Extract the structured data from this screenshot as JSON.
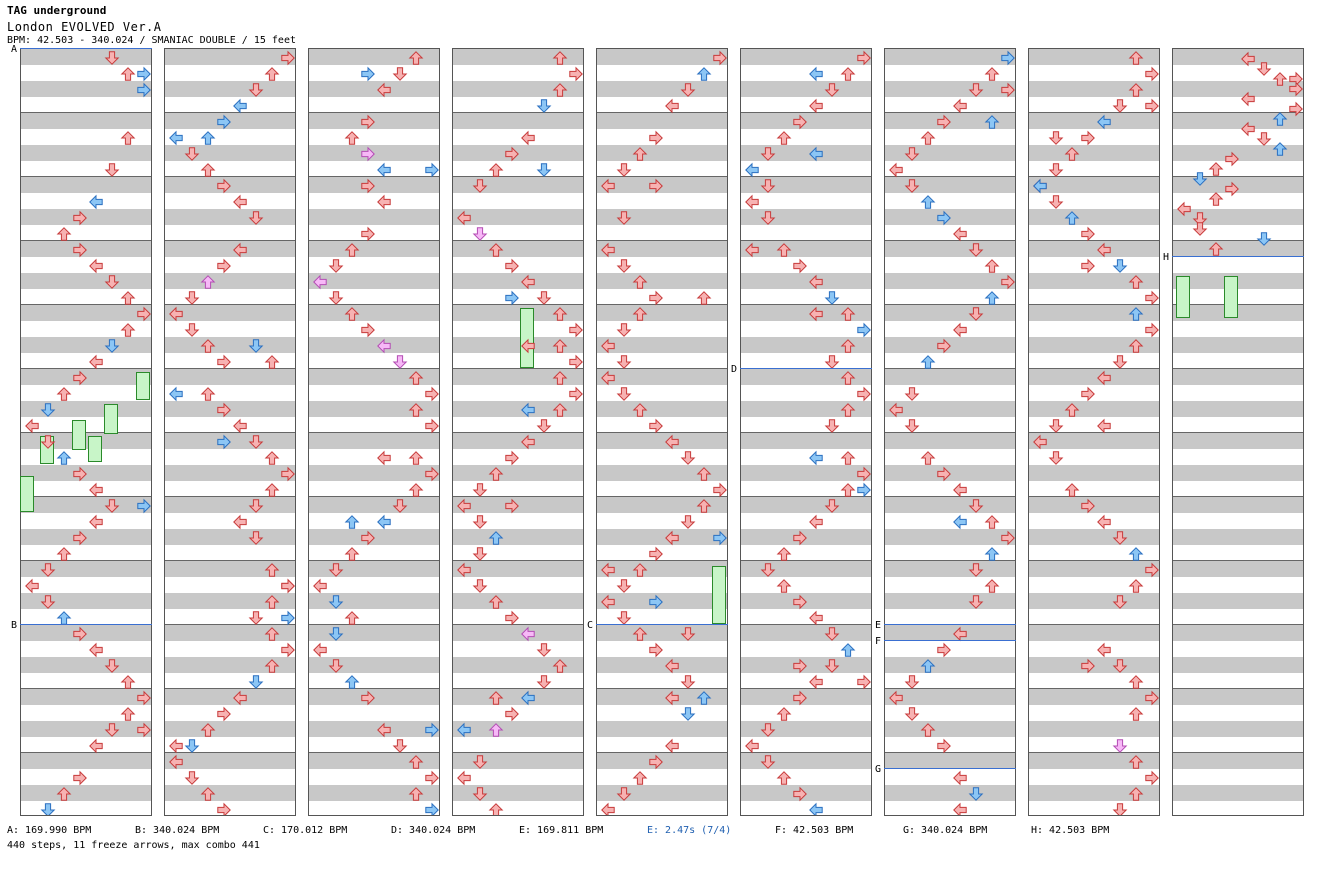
{
  "header": {
    "artist": "TAG underground",
    "title": "London EVOLVED Ver.A",
    "info": "BPM: 42.503 - 340.024 / SMANIAC DOUBLE / 15 feet"
  },
  "colors": {
    "red": "#f7b2b2",
    "blue": "#8cc6f5",
    "pink": "#f7b8f7",
    "freeze": "#c8f5c8",
    "accent": "#1f5fb0"
  },
  "bpm_markers": [
    {
      "label": "A",
      "column": 1
    },
    {
      "label": "B",
      "column": 1
    },
    {
      "label": "C",
      "column": 5
    },
    {
      "label": "D",
      "column": 6
    },
    {
      "label": "E",
      "column": 7
    },
    {
      "label": "F",
      "column": 7
    },
    {
      "label": "G",
      "column": 7
    },
    {
      "label": "H",
      "column": 9
    }
  ],
  "legend": [
    {
      "text": "A: 169.990 BPM",
      "highlight": false
    },
    {
      "text": "B: 340.024 BPM",
      "highlight": false
    },
    {
      "text": "C: 170.012 BPM",
      "highlight": false
    },
    {
      "text": "D: 340.024 BPM",
      "highlight": false
    },
    {
      "text": "E: 169.811 BPM",
      "highlight": false
    },
    {
      "text": "E: 2.47s (7/4)",
      "highlight": true
    },
    {
      "text": "F: 42.503 BPM",
      "highlight": false
    },
    {
      "text": "G: 340.024 BPM",
      "highlight": false
    },
    {
      "text": "H: 42.503 BPM",
      "highlight": false
    }
  ],
  "stats": "440 steps, 11 freeze arrows, max combo 441",
  "icons": [
    "left-arrow-icon",
    "down-arrow-icon",
    "up-arrow-icon",
    "right-arrow-icon"
  ]
}
